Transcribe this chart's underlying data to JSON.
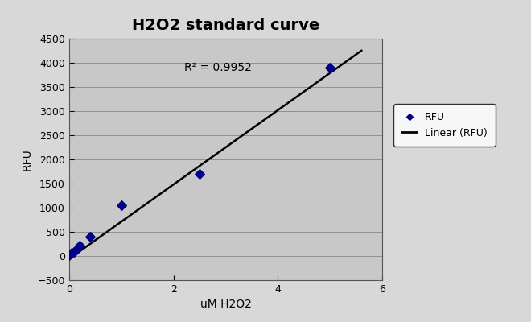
{
  "title": "H2O2 standard curve",
  "xlabel": "uM H2O2",
  "ylabel": "RFU",
  "x_data": [
    0.0,
    0.05,
    0.1,
    0.15,
    0.2,
    0.4,
    1.0,
    2.5,
    5.0
  ],
  "y_data": [
    20,
    60,
    90,
    145,
    210,
    400,
    1050,
    1700,
    3900
  ],
  "line_x": [
    -0.1,
    5.6
  ],
  "line_slope": 770.0,
  "line_intercept": -60.0,
  "r_squared": "R² = 0.9952",
  "r2_x": 2.2,
  "r2_y": 3900,
  "xlim": [
    0,
    6
  ],
  "ylim": [
    -500,
    4500
  ],
  "xticks": [
    0,
    2,
    4,
    6
  ],
  "yticks": [
    -500,
    0,
    500,
    1000,
    1500,
    2000,
    2500,
    3000,
    3500,
    4000,
    4500
  ],
  "marker_color": "#00008B",
  "line_color": "#000000",
  "plot_bg_color": "#C8C8C8",
  "fig_bg_color": "#D8D8D8",
  "legend_marker_label": "RFU",
  "legend_line_label": "Linear (RFU)",
  "title_fontsize": 14,
  "label_fontsize": 10,
  "tick_fontsize": 9
}
